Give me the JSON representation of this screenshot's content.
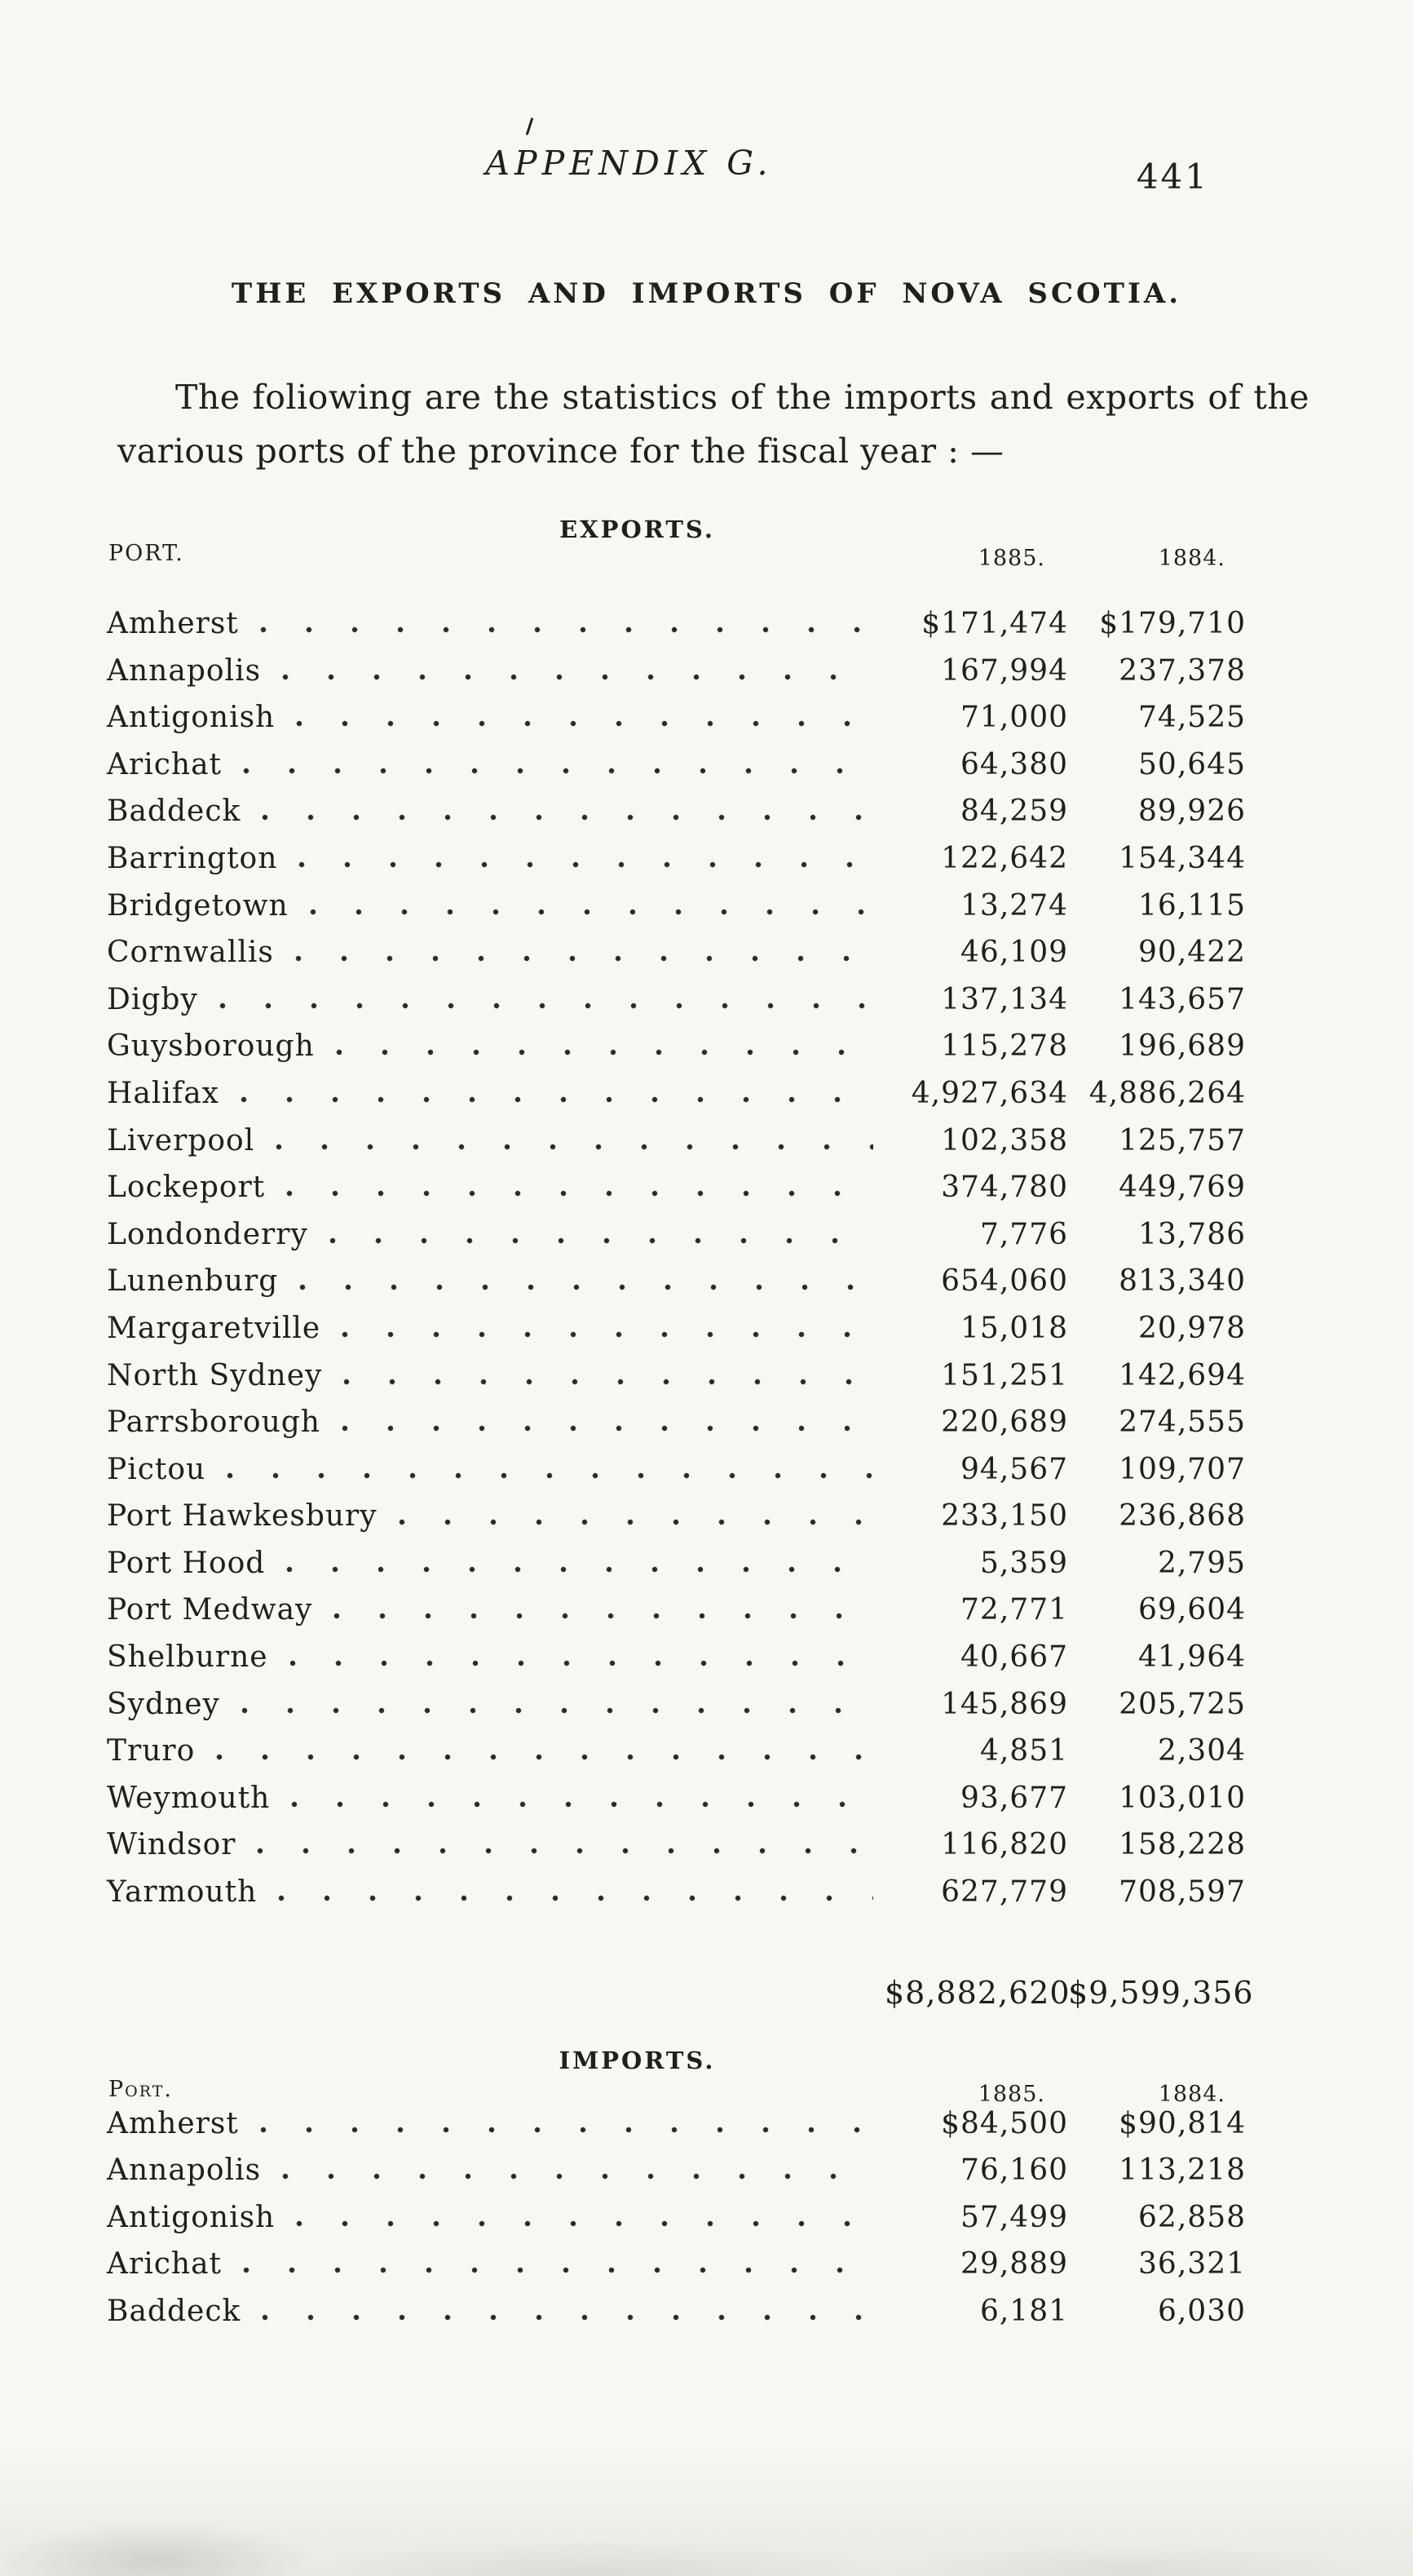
{
  "page": {
    "running_title": "APPENDIX G.",
    "page_number": "441",
    "title": "THE EXPORTS AND IMPORTS OF NOVA SCOTIA.",
    "intro_line1": "The foliowing are the statistics of the imports and exports of the",
    "intro_line2": "various ports of the province for the fiscal year : —"
  },
  "exports": {
    "section_label": "EXPORTS.",
    "port_header": "PORT.",
    "col_1885": "1885.",
    "col_1884": "1884.",
    "rows": [
      {
        "port": "Amherst",
        "y1885": "$171,474",
        "y1884": "$179,710"
      },
      {
        "port": "Annapolis",
        "y1885": "167,994",
        "y1884": "237,378"
      },
      {
        "port": "Antigonish",
        "y1885": "71,000",
        "y1884": "74,525"
      },
      {
        "port": "Arichat",
        "y1885": "64,380",
        "y1884": "50,645"
      },
      {
        "port": "Baddeck",
        "y1885": "84,259",
        "y1884": "89,926"
      },
      {
        "port": "Barrington",
        "y1885": "122,642",
        "y1884": "154,344"
      },
      {
        "port": "Bridgetown",
        "y1885": "13,274",
        "y1884": "16,115"
      },
      {
        "port": "Cornwallis",
        "y1885": "46,109",
        "y1884": "90,422"
      },
      {
        "port": "Digby",
        "y1885": "137,134",
        "y1884": "143,657"
      },
      {
        "port": "Guysborough",
        "y1885": "115,278",
        "y1884": "196,689"
      },
      {
        "port": "Halifax",
        "y1885": "4,927,634",
        "y1884": "4,886,264"
      },
      {
        "port": "Liverpool",
        "y1885": "102,358",
        "y1884": "125,757"
      },
      {
        "port": "Lockeport",
        "y1885": "374,780",
        "y1884": "449,769"
      },
      {
        "port": "Londonderry",
        "y1885": "7,776",
        "y1884": "13,786"
      },
      {
        "port": "Lunenburg",
        "y1885": "654,060",
        "y1884": "813,340"
      },
      {
        "port": "Margaretville",
        "y1885": "15,018",
        "y1884": "20,978"
      },
      {
        "port": "North Sydney",
        "y1885": "151,251",
        "y1884": "142,694"
      },
      {
        "port": "Parrsborough",
        "y1885": "220,689",
        "y1884": "274,555"
      },
      {
        "port": "Pictou",
        "y1885": "94,567",
        "y1884": "109,707"
      },
      {
        "port": "Port Hawkesbury",
        "y1885": "233,150",
        "y1884": "236,868"
      },
      {
        "port": "Port Hood",
        "y1885": "5,359",
        "y1884": "2,795"
      },
      {
        "port": "Port Medway",
        "y1885": "72,771",
        "y1884": "69,604"
      },
      {
        "port": "Shelburne",
        "y1885": "40,667",
        "y1884": "41,964"
      },
      {
        "port": "Sydney",
        "y1885": "145,869",
        "y1884": "205,725"
      },
      {
        "port": "Truro",
        "y1885": "4,851",
        "y1884": "2,304"
      },
      {
        "port": "Weymouth",
        "y1885": "93,677",
        "y1884": "103,010"
      },
      {
        "port": "Windsor",
        "y1885": "116,820",
        "y1884": "158,228"
      },
      {
        "port": "Yarmouth",
        "y1885": "627,779",
        "y1884": "708,597"
      }
    ],
    "total_1885": "$8,882,620",
    "total_1884": "$9,599,356"
  },
  "imports": {
    "section_label": "IMPORTS.",
    "port_header": "Port.",
    "col_1885": "1885.",
    "col_1884": "1884.",
    "rows": [
      {
        "port": "Amherst",
        "y1885": "$84,500",
        "y1884": "$90,814"
      },
      {
        "port": "Annapolis",
        "y1885": "76,160",
        "y1884": "113,218"
      },
      {
        "port": "Antigonish",
        "y1885": "57,499",
        "y1884": "62,858"
      },
      {
        "port": "Arichat",
        "y1885": "29,889",
        "y1884": "36,321"
      },
      {
        "port": "Baddeck",
        "y1885": "6,181",
        "y1884": "6,030"
      }
    ]
  }
}
